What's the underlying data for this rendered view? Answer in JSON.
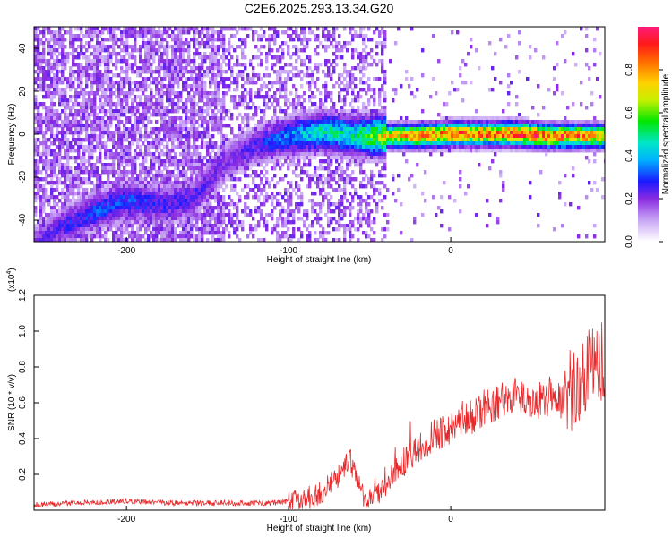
{
  "title": "C2E6.2025.293.13.34.G20",
  "chart_data": [
    {
      "type": "heatmap",
      "xlabel": "Height of straight line (km)",
      "ylabel": "Frequency (Hz)",
      "xlim": [
        -257,
        95
      ],
      "ylim": [
        -50,
        50
      ],
      "xticks": [
        -200,
        -100,
        0
      ],
      "yticks": [
        -40,
        -20,
        0,
        20,
        40
      ],
      "colorbar": {
        "label": "Normalized spectral amplitude",
        "range": [
          0,
          1
        ],
        "ticks": [
          "0.0",
          "0.2",
          "0.4",
          "0.6",
          "0.8"
        ]
      },
      "ridge": {
        "x": [
          -257,
          -240,
          -220,
          -200,
          -180,
          -160,
          -140,
          -120,
          -100,
          -80,
          -60,
          -40,
          -20,
          0,
          20,
          40,
          60,
          80,
          95
        ],
        "y": [
          -50,
          -42,
          -35,
          -30,
          -32,
          -30,
          -12,
          -4,
          0,
          2,
          0,
          0,
          0,
          1,
          1,
          1,
          0,
          0,
          0
        ],
        "amplitude": [
          0.2,
          0.25,
          0.3,
          0.3,
          0.25,
          0.25,
          0.2,
          0.25,
          0.35,
          0.45,
          0.45,
          0.7,
          0.8,
          0.85,
          0.8,
          0.9,
          0.85,
          0.8,
          0.75
        ]
      }
    },
    {
      "type": "line",
      "xlabel": "Height of straight line (km)",
      "ylabel": "SNR (10 * v/v)",
      "y_multiplier": "(x10",
      "y_multiplier_exp": "4",
      "y_multiplier_close": ")",
      "xlim": [
        -257,
        95
      ],
      "ylim": [
        0,
        1.2
      ],
      "xticks": [
        -200,
        -100,
        0
      ],
      "yticks": [
        "0.2",
        "0.4",
        "0.6",
        "0.8",
        "1.0",
        "1.2"
      ],
      "color": "#e8292b",
      "series": [
        {
          "x": [
            -257,
            -230,
            -200,
            -170,
            -140,
            -110,
            -90,
            -80,
            -70,
            -63,
            -58,
            -53,
            -45,
            -38,
            -30,
            -20,
            -10,
            0,
            10,
            20,
            30,
            40,
            50,
            60,
            70,
            80,
            85,
            90,
            95
          ],
          "y": [
            0.03,
            0.04,
            0.05,
            0.04,
            0.04,
            0.04,
            0.06,
            0.1,
            0.18,
            0.3,
            0.2,
            0.06,
            0.08,
            0.18,
            0.26,
            0.34,
            0.42,
            0.46,
            0.5,
            0.57,
            0.62,
            0.63,
            0.6,
            0.62,
            0.62,
            0.7,
            0.8,
            0.85,
            0.6
          ]
        }
      ]
    }
  ]
}
